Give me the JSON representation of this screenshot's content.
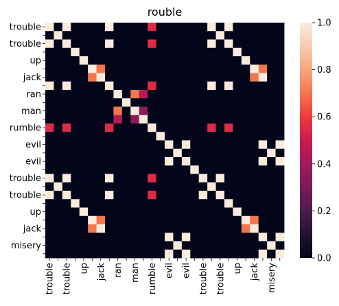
{
  "chart_data": {
    "type": "heatmap",
    "title": "rouble",
    "xlabel": "",
    "ylabel": "",
    "row_labels": [
      "trouble",
      "",
      "trouble",
      "",
      "up",
      "",
      "jack",
      "",
      "ran",
      "",
      "man",
      "",
      "rumble",
      "",
      "evil",
      "",
      "evil",
      "",
      "trouble",
      "",
      "trouble",
      "",
      "up",
      "",
      "jack",
      "",
      "misery",
      ""
    ],
    "col_labels": [
      "trouble",
      "",
      "trouble",
      "",
      "up",
      "",
      "jack",
      "",
      "ran",
      "",
      "man",
      "",
      "rumble",
      "",
      "evil",
      "",
      "evil",
      "",
      "trouble",
      "",
      "trouble",
      "",
      "up",
      "",
      "jack",
      "",
      "misery",
      ""
    ],
    "colorbar": {
      "min": 0.0,
      "max": 1.0,
      "ticks": [
        "0.0",
        "0.2",
        "0.4",
        "0.6",
        "0.8",
        "1.0"
      ]
    },
    "values": [
      [
        1,
        0,
        1,
        0,
        0,
        0,
        0,
        1,
        0,
        0,
        0,
        0,
        0.55,
        0,
        0,
        0,
        0,
        0,
        0,
        1,
        0,
        1,
        0,
        0,
        0,
        0,
        0,
        0
      ],
      [
        0,
        1,
        0,
        0,
        0,
        0,
        0,
        0,
        0,
        0,
        0,
        0,
        0,
        0,
        0,
        0,
        0,
        0,
        0,
        0,
        1,
        0,
        0,
        0,
        0,
        0,
        0,
        0
      ],
      [
        1,
        0,
        1,
        0,
        0,
        0,
        0,
        1,
        0,
        0,
        0,
        0,
        0.55,
        0,
        0,
        0,
        0,
        0,
        0,
        1,
        0,
        1,
        0,
        0,
        0,
        0,
        0,
        0
      ],
      [
        0,
        0,
        0,
        1,
        0,
        0,
        0,
        0,
        0,
        0,
        0,
        0,
        0,
        0,
        0,
        0,
        0,
        0,
        0,
        0,
        0,
        0,
        1,
        0,
        0,
        0,
        0,
        0
      ],
      [
        0,
        0,
        0,
        0,
        1,
        0,
        0,
        0,
        0,
        0,
        0,
        0,
        0,
        0,
        0,
        0,
        0,
        0,
        0,
        0,
        0,
        0,
        0,
        1,
        0,
        0,
        0,
        0
      ],
      [
        0,
        0,
        0,
        0,
        0,
        1,
        0.7,
        0,
        0,
        0,
        0,
        0,
        0,
        0,
        0,
        0,
        0,
        0,
        0,
        0,
        0,
        0,
        0,
        0,
        1,
        0.7,
        0,
        0
      ],
      [
        0,
        0,
        0,
        0,
        0,
        0.7,
        1,
        0,
        0,
        0,
        0,
        0,
        0,
        0,
        0,
        0,
        0,
        0,
        0,
        0,
        0,
        0,
        0,
        0,
        0.7,
        1,
        0,
        0
      ],
      [
        1,
        0,
        1,
        0,
        0,
        0,
        0,
        1,
        0,
        0,
        0,
        0,
        0.55,
        0,
        0,
        0,
        0,
        0,
        0,
        1,
        0,
        1,
        0,
        0,
        0,
        0,
        0,
        0
      ],
      [
        0,
        0,
        0,
        0,
        0,
        0,
        0,
        0,
        1,
        0,
        0.7,
        0.45,
        0,
        0,
        0,
        0,
        0,
        0,
        0,
        0,
        0,
        0,
        0,
        0,
        0,
        0,
        0,
        0
      ],
      [
        0,
        0,
        0,
        0,
        0,
        0,
        0,
        0,
        0,
        1,
        0,
        0,
        0,
        0,
        0,
        0,
        0,
        0,
        0,
        0,
        0,
        0,
        0,
        0,
        0,
        0,
        0,
        0
      ],
      [
        0,
        0,
        0,
        0,
        0,
        0,
        0,
        0,
        0.7,
        0,
        1,
        0.35,
        0,
        0,
        0,
        0,
        0,
        0,
        0,
        0,
        0,
        0,
        0,
        0,
        0,
        0,
        0,
        0
      ],
      [
        0,
        0,
        0,
        0,
        0,
        0,
        0,
        0,
        0.45,
        0,
        0.35,
        1,
        0,
        0,
        0,
        0,
        0,
        0,
        0,
        0,
        0,
        0,
        0,
        0,
        0,
        0,
        0,
        0
      ],
      [
        0.55,
        0,
        0.55,
        0,
        0,
        0,
        0,
        0.55,
        0,
        0,
        0,
        0,
        1,
        0,
        0,
        0,
        0,
        0,
        0,
        0.55,
        0,
        0.55,
        0,
        0,
        0,
        0,
        0,
        0
      ],
      [
        0,
        0,
        0,
        0,
        0,
        0,
        0,
        0,
        0,
        0,
        0,
        0,
        0,
        1,
        0,
        0,
        0,
        0,
        0,
        0,
        0,
        0,
        0,
        0,
        0,
        0,
        0,
        0
      ],
      [
        0,
        0,
        0,
        0,
        0,
        0,
        0,
        0,
        0,
        0,
        0,
        0,
        0,
        0,
        1,
        0,
        1,
        0,
        0,
        0,
        0,
        0,
        0,
        0,
        0,
        1,
        0,
        1
      ],
      [
        0,
        0,
        0,
        0,
        0,
        0,
        0,
        0,
        0,
        0,
        0,
        0,
        0,
        0,
        0,
        1,
        0,
        0,
        0,
        0,
        0,
        0,
        0,
        0,
        0,
        0,
        1,
        0
      ],
      [
        0,
        0,
        0,
        0,
        0,
        0,
        0,
        0,
        0,
        0,
        0,
        0,
        0,
        0,
        1,
        0,
        1,
        0,
        0,
        0,
        0,
        0,
        0,
        0,
        0,
        1,
        0,
        1
      ],
      [
        0,
        0,
        0,
        0,
        0,
        0,
        0,
        0,
        0,
        0,
        0,
        0,
        0,
        0,
        0,
        0,
        0,
        1,
        0,
        0,
        0,
        0,
        0,
        0,
        0,
        0,
        0,
        0
      ],
      [
        1,
        0,
        1,
        0,
        0,
        0,
        0,
        1,
        0,
        0,
        0,
        0,
        0.55,
        0,
        0,
        0,
        0,
        0,
        1,
        0,
        1,
        0,
        0,
        0,
        0,
        0,
        0,
        0
      ],
      [
        0,
        1,
        0,
        0,
        0,
        0,
        0,
        0,
        0,
        0,
        0,
        0,
        0,
        0,
        0,
        0,
        0,
        0,
        0,
        1,
        0,
        0,
        0,
        0,
        0,
        0,
        0,
        0
      ],
      [
        1,
        0,
        1,
        0,
        0,
        0,
        0,
        1,
        0,
        0,
        0,
        0,
        0.55,
        0,
        0,
        0,
        0,
        0,
        1,
        0,
        1,
        0,
        0,
        0,
        0,
        0,
        0,
        0
      ],
      [
        0,
        0,
        0,
        1,
        0,
        0,
        0,
        0,
        0,
        0,
        0,
        0,
        0,
        0,
        0,
        0,
        0,
        0,
        0,
        0,
        0,
        1,
        0,
        0,
        0,
        0,
        0,
        0
      ],
      [
        0,
        0,
        0,
        0,
        1,
        0,
        0,
        0,
        0,
        0,
        0,
        0,
        0,
        0,
        0,
        0,
        0,
        0,
        0,
        0,
        0,
        0,
        1,
        0,
        0,
        0,
        0,
        0
      ],
      [
        0,
        0,
        0,
        0,
        0,
        1,
        0.7,
        0,
        0,
        0,
        0,
        0,
        0,
        0,
        0,
        0,
        0,
        0,
        0,
        0,
        0,
        0,
        0,
        1,
        0.7,
        0,
        0,
        0
      ],
      [
        0,
        0,
        0,
        0,
        0,
        0.7,
        1,
        0,
        0,
        0,
        0,
        0,
        0,
        0,
        0,
        0,
        0,
        0,
        0,
        0,
        0,
        0,
        0,
        0.7,
        1,
        0,
        0,
        0
      ],
      [
        0,
        0,
        0,
        0,
        0,
        0,
        0,
        0,
        0,
        0,
        0,
        0,
        0,
        0,
        1,
        0,
        1,
        0,
        0,
        0,
        0,
        0,
        0,
        0,
        0,
        1,
        0,
        1
      ],
      [
        0,
        0,
        0,
        0,
        0,
        0,
        0,
        0,
        0,
        0,
        0,
        0,
        0,
        0,
        0,
        1,
        0,
        0,
        0,
        0,
        0,
        0,
        0,
        0,
        0,
        0,
        1,
        0
      ],
      [
        0,
        0,
        0,
        0,
        0,
        0,
        0,
        0,
        0,
        0,
        0,
        0,
        0,
        0,
        1,
        0,
        1,
        0,
        0,
        0,
        0,
        0,
        0,
        0,
        0,
        1,
        0,
        1
      ]
    ],
    "colormap": [
      "#03051a",
      "#221331",
      "#4c1d4b",
      "#781c59",
      "#a11a5b",
      "#cb1b4f",
      "#ed3b3b",
      "#f37651",
      "#f5a67d",
      "#f7cdb1",
      "#faebdd"
    ]
  }
}
